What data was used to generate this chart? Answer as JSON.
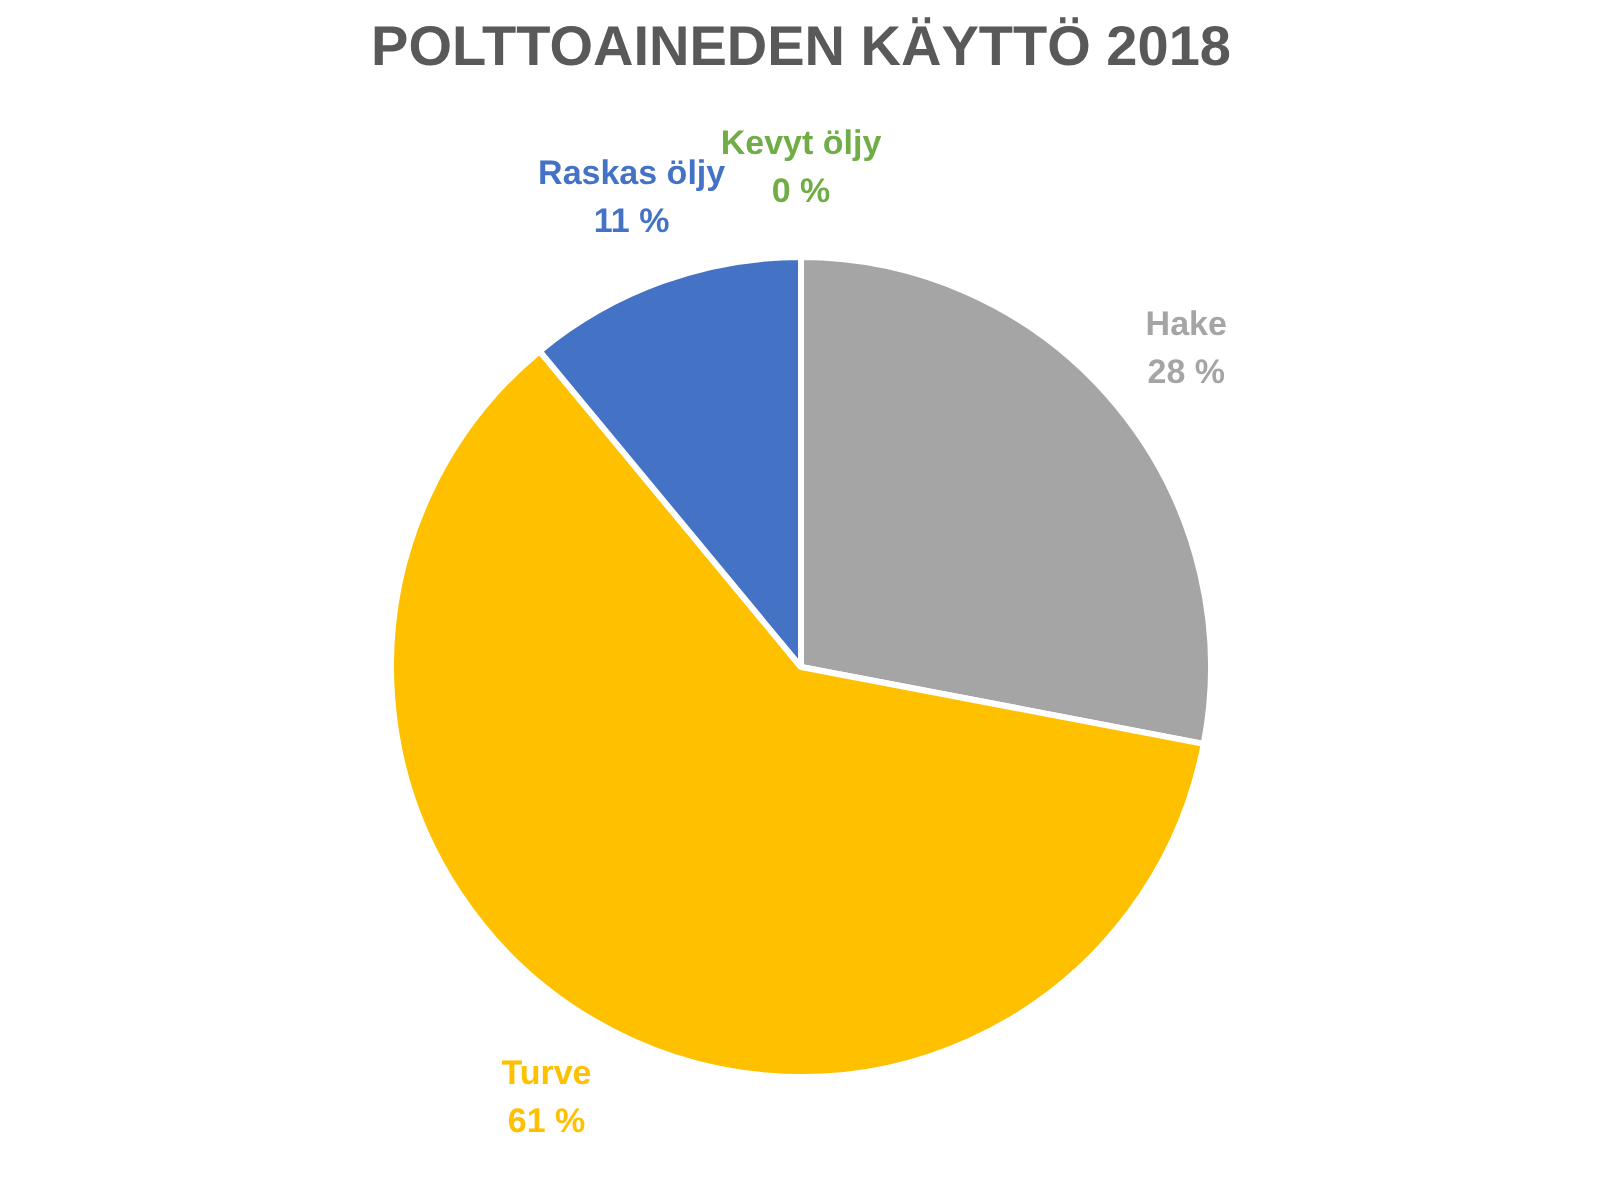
{
  "chart_data": {
    "type": "pie",
    "title": "POLTTOAINEDEN KÄYTTÖ 2018",
    "categories": [
      "Hake",
      "Turve",
      "Raskas öljy",
      "Kevyt öljy"
    ],
    "values": [
      28,
      61,
      11,
      0
    ],
    "colors": [
      "#a5a5a5",
      "#ffc000",
      "#4472c4",
      "#70ad47"
    ],
    "value_labels": [
      "28 %",
      "61 %",
      "11 %",
      "0 %"
    ]
  }
}
